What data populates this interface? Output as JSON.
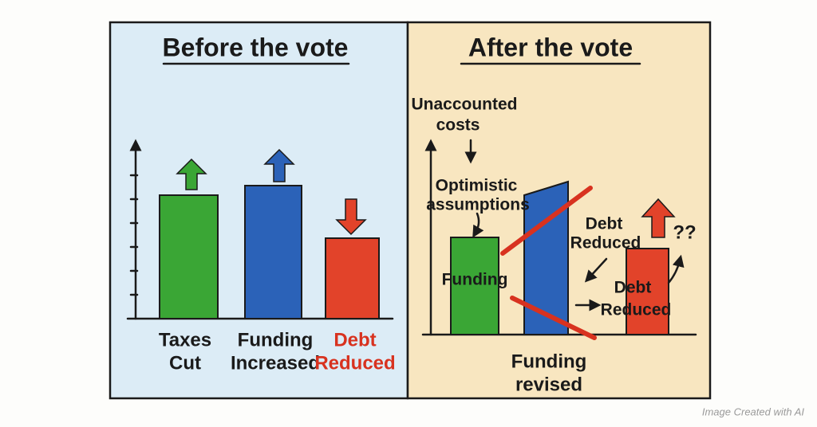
{
  "left_panel": {
    "title": "Before the vote",
    "bars": [
      {
        "label": [
          "Taxes",
          "Cut"
        ]
      },
      {
        "label": [
          "Funding",
          "Increased"
        ]
      },
      {
        "label": [
          "Debt",
          "Reduced"
        ]
      }
    ]
  },
  "right_panel": {
    "title": "After the vote",
    "annotations": [
      [
        "Unaccounted",
        "costs"
      ],
      [
        "Optimistic",
        "assumptions"
      ],
      [
        "Funding"
      ],
      [
        "Debt",
        "Reduced"
      ],
      [
        "Debt",
        "Reduced"
      ],
      [
        "??"
      ],
      [
        "Funding",
        "revised"
      ]
    ]
  },
  "footer": {
    "credit": "Image Created with AI"
  }
}
